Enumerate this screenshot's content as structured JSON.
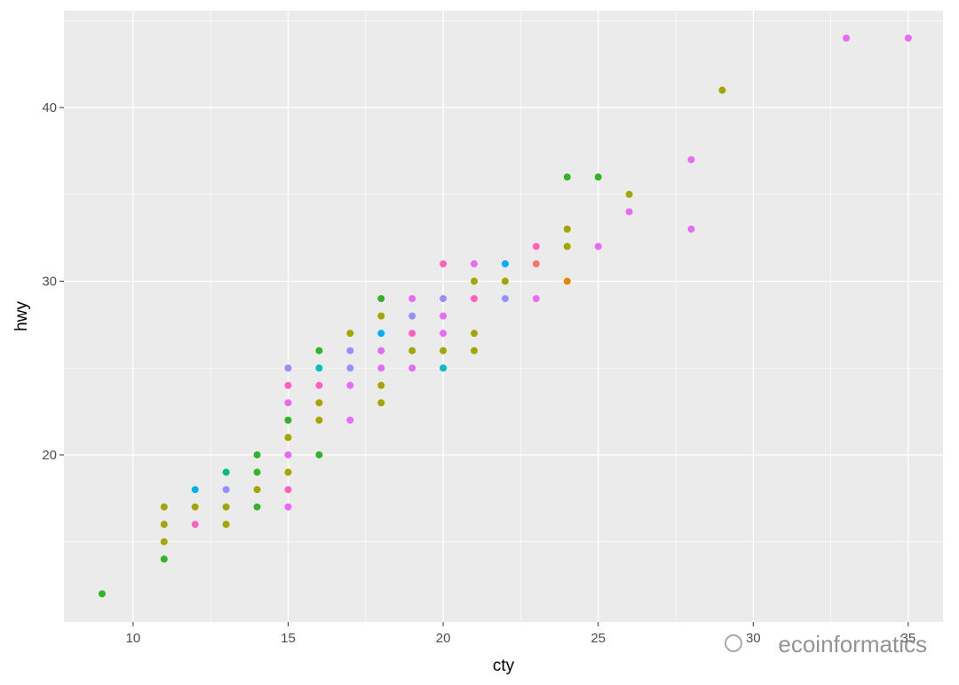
{
  "chart_data": {
    "type": "scatter",
    "x_label": "cty",
    "y_label": "hwy",
    "xlim": [
      7.77,
      36.12
    ],
    "ylim": [
      10.38,
      45.58
    ],
    "xticks": [
      10,
      15,
      20,
      25,
      30,
      35
    ],
    "yticks": [
      20,
      30,
      40
    ],
    "x_minor_grid": [
      12.5,
      17.5,
      22.5,
      27.5,
      32.5
    ],
    "y_minor_grid": [
      15,
      25,
      35,
      45
    ],
    "grid": true,
    "panel_color": "#ebebeb",
    "grid_color": "#ffffff",
    "watermark": "ecoinformatics",
    "x": [
      9,
      11,
      11,
      11,
      11,
      12,
      12,
      12,
      13,
      13,
      13,
      13,
      14,
      14,
      14,
      14,
      15,
      15,
      15,
      15,
      15,
      15,
      15,
      15,
      15,
      16,
      16,
      16,
      16,
      16,
      16,
      17,
      17,
      17,
      17,
      17,
      18,
      18,
      18,
      18,
      18,
      18,
      18,
      19,
      19,
      19,
      19,
      19,
      20,
      20,
      20,
      20,
      20,
      20,
      21,
      21,
      21,
      21,
      21,
      22,
      22,
      22,
      23,
      23,
      23,
      24,
      24,
      24,
      24,
      25,
      25,
      26,
      26,
      28,
      28,
      29,
      33,
      35
    ],
    "y": [
      12,
      17,
      16,
      15,
      14,
      18,
      17,
      16,
      19,
      18,
      17,
      16,
      20,
      19,
      18,
      17,
      25,
      24,
      23,
      22,
      21,
      20,
      19,
      18,
      17,
      26,
      25,
      24,
      23,
      22,
      20,
      27,
      26,
      25,
      24,
      22,
      29,
      28,
      27,
      26,
      25,
      24,
      23,
      29,
      28,
      27,
      26,
      25,
      31,
      29,
      28,
      27,
      26,
      25,
      31,
      30,
      29,
      27,
      26,
      31,
      30,
      29,
      32,
      31,
      29,
      36,
      33,
      32,
      30,
      36,
      32,
      35,
      34,
      37,
      33,
      41,
      44,
      44
    ],
    "colors": [
      "#31b425",
      "#a3a500",
      "#a3a500",
      "#a3a500",
      "#31b425",
      "#00b0f6",
      "#a3a500",
      "#ff62bc",
      "#00bf7d",
      "#9590ff",
      "#a3a500",
      "#a3a500",
      "#31b425",
      "#31b425",
      "#a3a500",
      "#31b425",
      "#9590ff",
      "#ff62bc",
      "#e76bf3",
      "#31b425",
      "#a3a500",
      "#e76bf3",
      "#a3a500",
      "#ff62bc",
      "#e76bf3",
      "#31b425",
      "#00bfc4",
      "#ff62bc",
      "#a3a500",
      "#a3a500",
      "#31b425",
      "#a3a500",
      "#9590ff",
      "#9590ff",
      "#e76bf3",
      "#e76bf3",
      "#31b425",
      "#a3a500",
      "#00b0f6",
      "#e76bf3",
      "#e76bf3",
      "#a3a500",
      "#a3a500",
      "#e76bf3",
      "#9590ff",
      "#ff62bc",
      "#a3a500",
      "#e76bf3",
      "#ff62bc",
      "#9590ff",
      "#e76bf3",
      "#e76bf3",
      "#a3a500",
      "#00bfc4",
      "#e76bf3",
      "#a3a500",
      "#ff62bc",
      "#a3a500",
      "#a3a500",
      "#00b0f6",
      "#a3a500",
      "#9590ff",
      "#ff62bc",
      "#f8766d",
      "#e76bf3",
      "#31b425",
      "#a3a500",
      "#a3a500",
      "#e58700",
      "#31b425",
      "#e76bf3",
      "#a3a500",
      "#e76bf3",
      "#e76bf3",
      "#e76bf3",
      "#a3a500",
      "#e76bf3",
      "#e76bf3"
    ]
  }
}
